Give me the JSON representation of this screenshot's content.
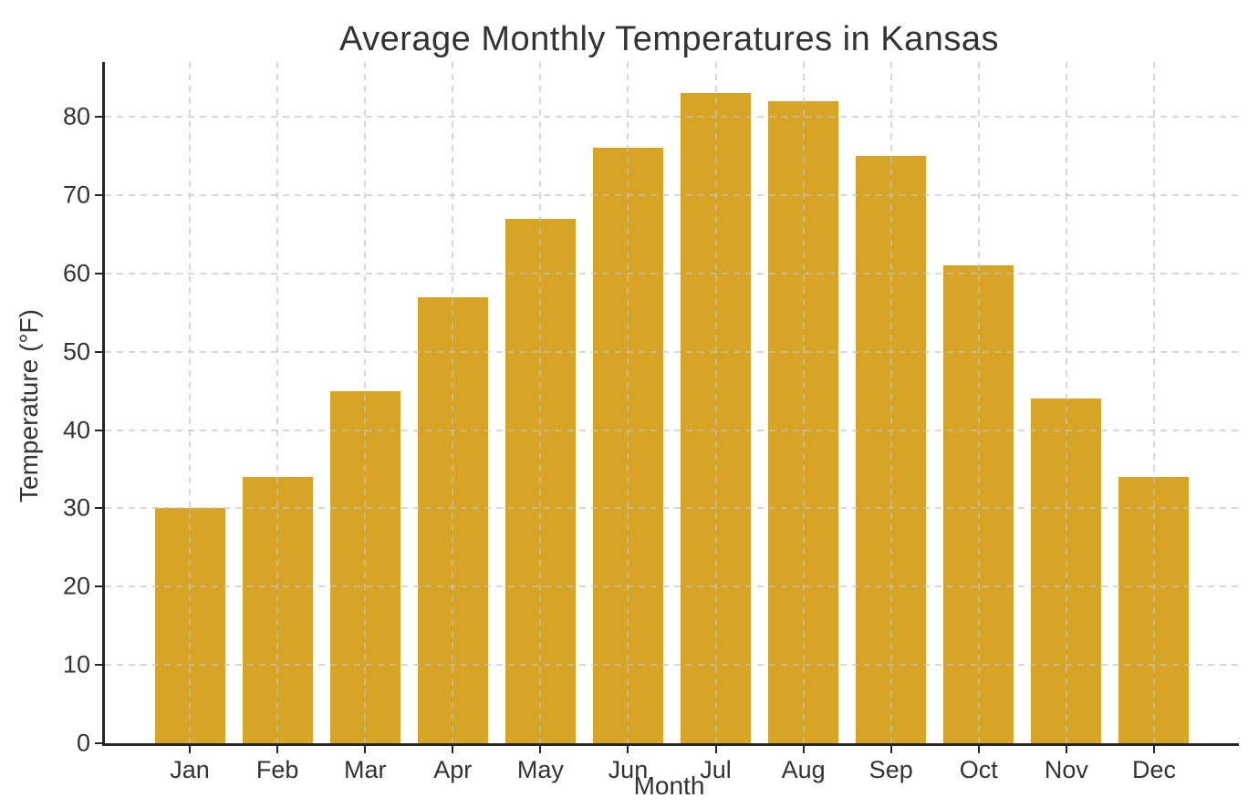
{
  "chart_data": {
    "type": "bar",
    "title": "Average Monthly Temperatures in Kansas",
    "xlabel": "Month",
    "ylabel": "Temperature (°F)",
    "categories": [
      "Jan",
      "Feb",
      "Mar",
      "Apr",
      "May",
      "Jun",
      "Jul",
      "Aug",
      "Sep",
      "Oct",
      "Nov",
      "Dec"
    ],
    "values": [
      30,
      34,
      45,
      57,
      67,
      76,
      83,
      82,
      75,
      61,
      44,
      34
    ],
    "ylim": [
      0,
      87
    ],
    "yticks": [
      0,
      10,
      20,
      30,
      40,
      50,
      60,
      70,
      80
    ],
    "grid": "dashed, drawn over bars",
    "legend": "none",
    "bar_color": "#d7a426",
    "grid_color": "#c3c3c3",
    "axis_color": "#262626",
    "text_color": "#333333",
    "background_color": "#ffffff"
  }
}
